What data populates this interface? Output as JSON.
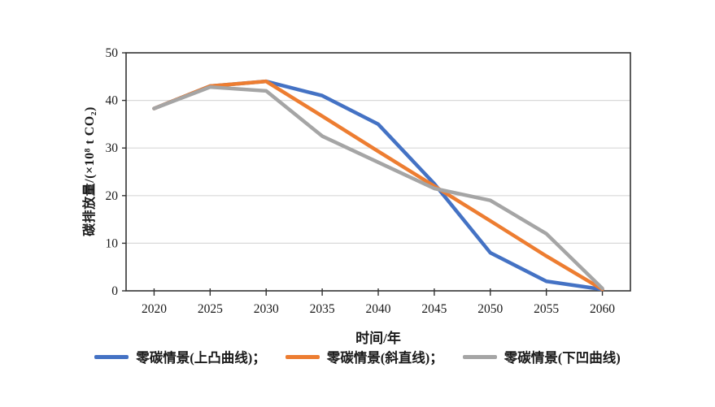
{
  "chart_data": {
    "type": "line",
    "title": "",
    "xlabel": "时间/年",
    "ylabel": "碳排放量/(×10⁸ t CO₂)",
    "categories": [
      "2020",
      "2025",
      "2030",
      "2035",
      "2040",
      "2045",
      "2050",
      "2055",
      "2060"
    ],
    "ylim": [
      0,
      50
    ],
    "yticks": [
      0,
      10,
      20,
      30,
      40,
      50
    ],
    "grid": "horizontal",
    "legend_position": "bottom",
    "series": [
      {
        "name": "零碳情景(上凸曲线)",
        "legend_label": "零碳情景(上凸曲线)；",
        "color": "#4472C4",
        "values": [
          38.3,
          43,
          44,
          41,
          35,
          22.5,
          8,
          2,
          0.3
        ]
      },
      {
        "name": "零碳情景(斜直线)",
        "legend_label": "零碳情景(斜直线)；",
        "color": "#ED7D31",
        "values": [
          38.3,
          43,
          44,
          36.7,
          29.3,
          22,
          14.7,
          7.3,
          0.3
        ]
      },
      {
        "name": "零碳情景(下凹曲线)",
        "legend_label": "零碳情景(下凹曲线)",
        "color": "#A5A5A5",
        "values": [
          38.3,
          42.8,
          42,
          32.5,
          27,
          21.5,
          19,
          12,
          0.5
        ]
      }
    ],
    "style": {
      "gridline_color": "#D9D9D9",
      "frame_color": "#333333",
      "line_width": 4.5
    }
  }
}
